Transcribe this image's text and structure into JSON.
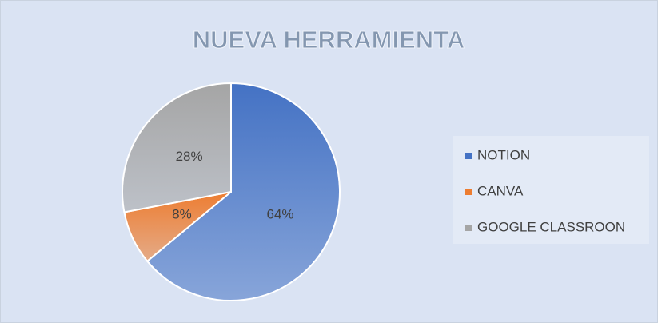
{
  "chart_data": {
    "type": "pie",
    "title": "NUEVA HERRAMIENTA",
    "categories": [
      "NOTION",
      "CANVA",
      "GOOGLE CLASSROON"
    ],
    "values": [
      64,
      8,
      28
    ],
    "value_labels": [
      "64%",
      "8%",
      "28%"
    ],
    "colors": [
      "#4472c4",
      "#ed7d31",
      "#a5a5a5"
    ],
    "legend": "right"
  }
}
